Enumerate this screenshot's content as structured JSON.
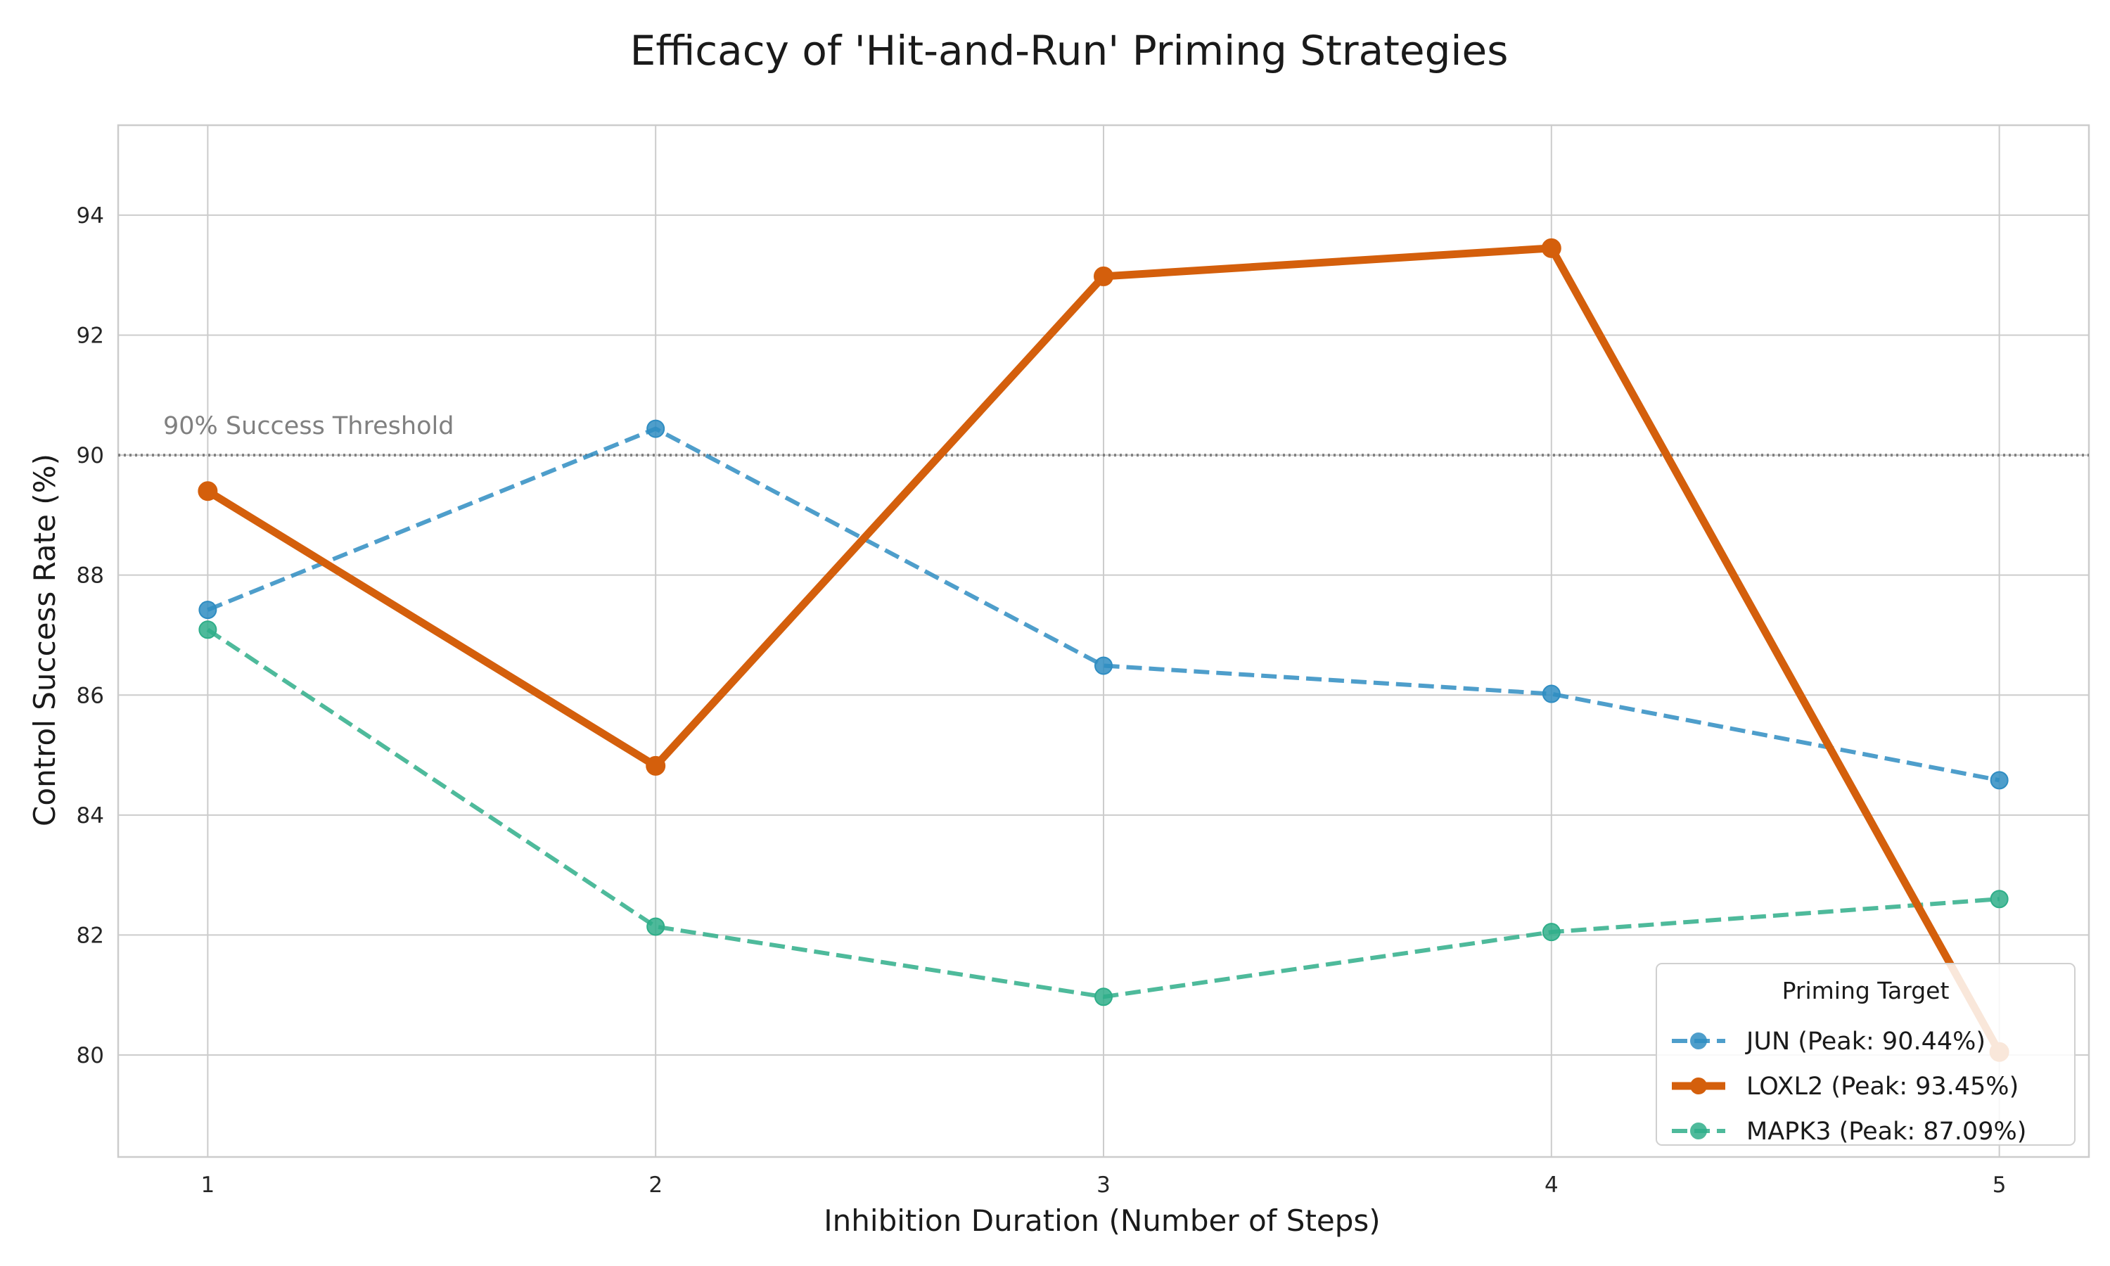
{
  "chart_data": {
    "type": "line",
    "title": "Efficacy of 'Hit-and-Run' Priming Strategies",
    "xlabel": "Inhibition Duration (Number of Steps)",
    "ylabel": "Control Success Rate (%)",
    "x": [
      1,
      2,
      3,
      4,
      5
    ],
    "x_tick_labels": [
      "1",
      "2",
      "3",
      "4",
      "5"
    ],
    "xlim": [
      0.8,
      5.2
    ],
    "ylim": [
      78.3,
      95.5
    ],
    "y_ticks": [
      80,
      82,
      84,
      86,
      88,
      90,
      92,
      94
    ],
    "y_tick_labels": [
      "80",
      "82",
      "84",
      "86",
      "88",
      "90",
      "92",
      "94"
    ],
    "grid": true,
    "reference_line": {
      "y": 90,
      "style": "dotted",
      "color": "#808080",
      "label": "90% Success Threshold"
    },
    "legend": {
      "title": "Priming Target",
      "placement": "lower-right"
    },
    "series": [
      {
        "name": "JUN (Peak: 90.44%)",
        "values": [
          87.42,
          90.44,
          86.49,
          86.02,
          84.58
        ],
        "color": "#2f8dc2",
        "style": "dashed",
        "emphasis": false
      },
      {
        "name": "LOXL2 (Peak: 93.45%)",
        "values": [
          89.4,
          84.82,
          92.98,
          93.45,
          80.05
        ],
        "color": "#d45f0c",
        "style": "solid",
        "emphasis": true
      },
      {
        "name": "MAPK3 (Peak: 87.09%)",
        "values": [
          87.09,
          82.14,
          80.97,
          82.05,
          82.6
        ],
        "color": "#2fae89",
        "style": "dashed",
        "emphasis": false
      }
    ]
  }
}
